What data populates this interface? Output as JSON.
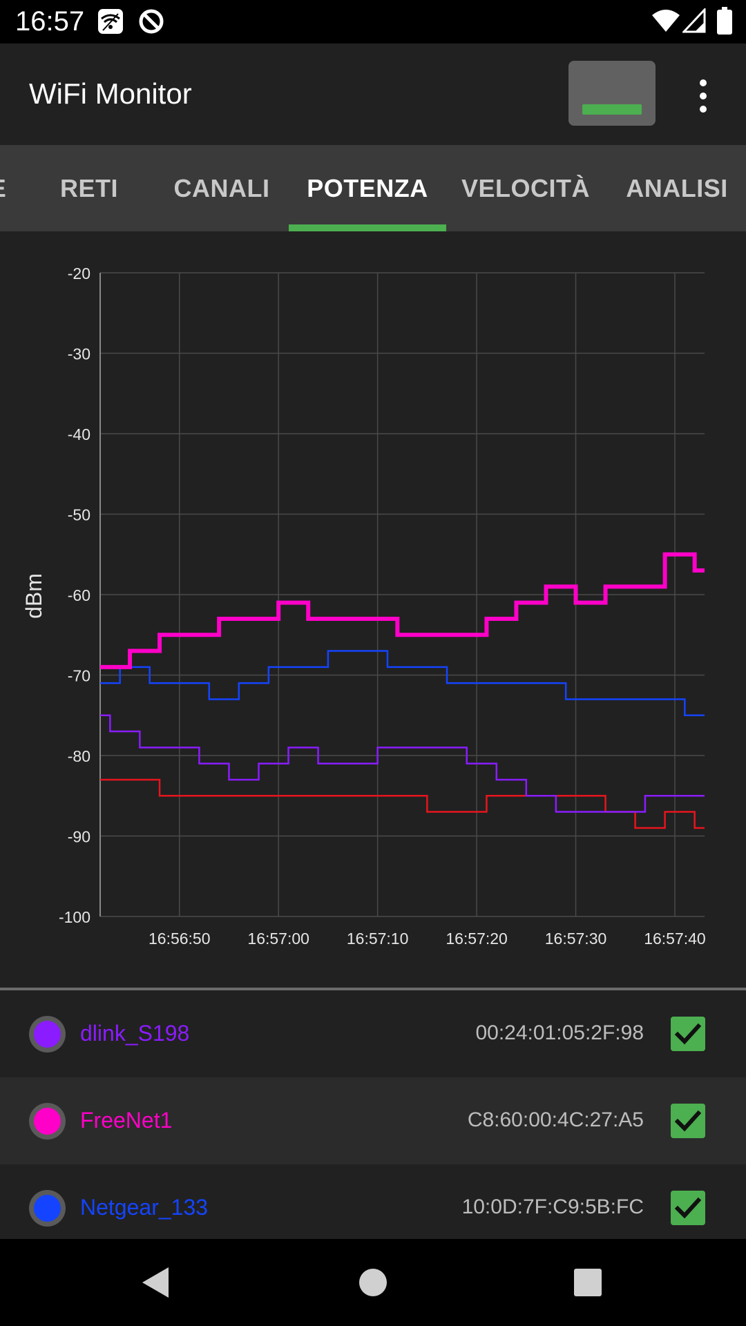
{
  "status_bar": {
    "time": "16:57",
    "left_icons": [
      "wifi-settings-icon",
      "data-saver-icon"
    ],
    "right_icons": [
      "wifi-signal-icon",
      "cell-signal-icon",
      "battery-icon"
    ]
  },
  "app_bar": {
    "title": "WiFi Monitor",
    "pause_button": "pause-icon",
    "overflow": "more-vert-icon"
  },
  "tabs": {
    "partial_left": "E",
    "items": [
      "RETI",
      "CANALI",
      "POTENZA",
      "VELOCITÀ",
      "ANALISI"
    ],
    "active": "POTENZA",
    "accent_color": "#4CAF50"
  },
  "chart_data": {
    "type": "line",
    "step": true,
    "ylabel": "dBm",
    "xlabel": "",
    "ylim": [
      -100,
      -20
    ],
    "yticks": [
      "-20",
      "-30",
      "-40",
      "-50",
      "-60",
      "-70",
      "-80",
      "-90",
      "-100"
    ],
    "xlim": [
      "16:56:42",
      "16:57:43"
    ],
    "xticks": [
      "16:56:50",
      "16:57:00",
      "16:57:10",
      "16:57:20",
      "16:57:30",
      "16:57:40"
    ],
    "grid": true,
    "series": [
      {
        "name": "FreeNet1",
        "color": "#ff00c8",
        "points": [
          [
            "16:56:42",
            -69
          ],
          [
            "16:56:45",
            -67
          ],
          [
            "16:56:48",
            -65
          ],
          [
            "16:56:54",
            -63
          ],
          [
            "16:57:00",
            -61
          ],
          [
            "16:57:03",
            -63
          ],
          [
            "16:57:12",
            -65
          ],
          [
            "16:57:21",
            -63
          ],
          [
            "16:57:24",
            -61
          ],
          [
            "16:57:27",
            -59
          ],
          [
            "16:57:30",
            -61
          ],
          [
            "16:57:33",
            -59
          ],
          [
            "16:57:39",
            -55
          ],
          [
            "16:57:42",
            -57
          ]
        ]
      },
      {
        "name": "Netgear_133",
        "color": "#1444ff",
        "points": [
          [
            "16:56:42",
            -71
          ],
          [
            "16:56:44",
            -69
          ],
          [
            "16:56:47",
            -71
          ],
          [
            "16:56:53",
            -73
          ],
          [
            "16:56:56",
            -71
          ],
          [
            "16:56:59",
            -69
          ],
          [
            "16:57:05",
            -67
          ],
          [
            "16:57:11",
            -69
          ],
          [
            "16:57:17",
            -71
          ],
          [
            "16:57:29",
            -73
          ],
          [
            "16:57:41",
            -75
          ]
        ]
      },
      {
        "name": "dlink_S198",
        "color": "#8a1cff",
        "points": [
          [
            "16:56:42",
            -75
          ],
          [
            "16:56:43",
            -77
          ],
          [
            "16:56:46",
            -79
          ],
          [
            "16:56:52",
            -81
          ],
          [
            "16:56:55",
            -83
          ],
          [
            "16:56:58",
            -81
          ],
          [
            "16:57:01",
            -79
          ],
          [
            "16:57:04",
            -81
          ],
          [
            "16:57:10",
            -79
          ],
          [
            "16:57:19",
            -81
          ],
          [
            "16:57:22",
            -83
          ],
          [
            "16:57:25",
            -85
          ],
          [
            "16:57:28",
            -87
          ],
          [
            "16:57:37",
            -85
          ]
        ]
      },
      {
        "name": "red-series",
        "color": "#e8141e",
        "points": [
          [
            "16:56:42",
            -83
          ],
          [
            "16:56:48",
            -85
          ],
          [
            "16:57:15",
            -87
          ],
          [
            "16:57:21",
            -85
          ],
          [
            "16:57:33",
            -87
          ],
          [
            "16:57:36",
            -89
          ],
          [
            "16:57:39",
            -87
          ],
          [
            "16:57:42",
            -89
          ]
        ]
      }
    ]
  },
  "networks": [
    {
      "ssid": "dlink_S198",
      "mac": "00:24:01:05:2F:98",
      "color": "#8a1cff",
      "checked": true
    },
    {
      "ssid": "FreeNet1",
      "mac": "C8:60:00:4C:27:A5",
      "color": "#ff00c8",
      "checked": true
    },
    {
      "ssid": "Netgear_133",
      "mac": "10:0D:7F:C9:5B:FC",
      "color": "#1444ff",
      "checked": true
    }
  ],
  "nav_bar": {
    "buttons": [
      "back-icon",
      "home-icon",
      "recents-icon"
    ]
  }
}
